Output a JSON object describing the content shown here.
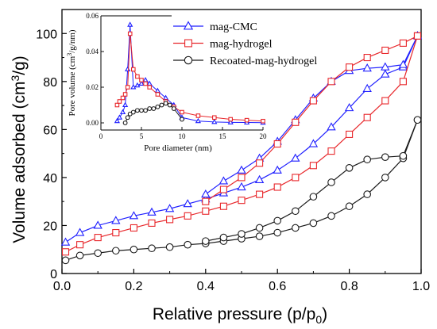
{
  "chart_data": [
    {
      "type": "line",
      "xlabel": "Relative pressure (p/p0)",
      "xlabel_parts": [
        "Relative pressure (p/p",
        "0",
        ")"
      ],
      "ylabel": "Volume adsorbed (cm3/g)",
      "ylabel_parts": [
        "Volume adsorbed (cm",
        "3",
        "/g)"
      ],
      "xlim": [
        0.0,
        1.0
      ],
      "ylim": [
        0,
        110
      ],
      "xticks": [
        0.0,
        0.2,
        0.4,
        0.6,
        0.8,
        1.0
      ],
      "xtick_labels": [
        "0.0",
        "0.2",
        "0.4",
        "0.6",
        "0.8",
        "1.0"
      ],
      "yticks": [
        0,
        20,
        40,
        60,
        80,
        100
      ],
      "ytick_labels": [
        "0",
        "20",
        "40",
        "60",
        "80",
        "100"
      ],
      "grid": false,
      "legend_position": "top-right",
      "series": [
        {
          "name": "mag-CMC",
          "color": "#1f1fff",
          "marker": "triangle",
          "adsorption": {
            "x": [
              0.01,
              0.05,
              0.1,
              0.15,
              0.2,
              0.25,
              0.3,
              0.35,
              0.4,
              0.45,
              0.5,
              0.55,
              0.6,
              0.65,
              0.7,
              0.75,
              0.8,
              0.85,
              0.9,
              0.95,
              0.99
            ],
            "y": [
              13,
              17,
              20,
              22,
              24,
              25.5,
              27,
              29,
              31,
              33.5,
              36,
              39,
              43,
              48,
              54,
              61,
              69,
              77,
              83,
              86,
              99
            ]
          },
          "desorption": {
            "x": [
              0.99,
              0.95,
              0.9,
              0.85,
              0.8,
              0.75,
              0.7,
              0.65,
              0.6,
              0.55,
              0.5,
              0.45,
              0.4
            ],
            "y": [
              99,
              87,
              86,
              85.5,
              84.5,
              80,
              73,
              64,
              55,
              48,
              43,
              38.5,
              33
            ]
          }
        },
        {
          "name": "mag-hydrogel",
          "color": "#e8272b",
          "marker": "square",
          "adsorption": {
            "x": [
              0.01,
              0.05,
              0.1,
              0.15,
              0.2,
              0.25,
              0.3,
              0.35,
              0.4,
              0.45,
              0.5,
              0.55,
              0.6,
              0.65,
              0.7,
              0.75,
              0.8,
              0.85,
              0.9,
              0.95,
              0.99
            ],
            "y": [
              9,
              12,
              15,
              17,
              19,
              21,
              22.5,
              24,
              26,
              28,
              30.5,
              33,
              36,
              40,
              45,
              51,
              58,
              65,
              72,
              80,
              99
            ]
          },
          "desorption": {
            "x": [
              0.99,
              0.95,
              0.9,
              0.85,
              0.8,
              0.75,
              0.7,
              0.65,
              0.6,
              0.55,
              0.5,
              0.45,
              0.4
            ],
            "y": [
              99,
              96,
              93,
              90,
              86,
              80,
              72,
              63,
              54,
              46,
              40,
              35,
              30
            ]
          }
        },
        {
          "name": "Recoated-mag-hydrogel",
          "color": "#1a1a1a",
          "marker": "circle",
          "adsorption": {
            "x": [
              0.01,
              0.05,
              0.1,
              0.15,
              0.2,
              0.25,
              0.3,
              0.35,
              0.4,
              0.45,
              0.5,
              0.55,
              0.6,
              0.65,
              0.7,
              0.75,
              0.8,
              0.85,
              0.9,
              0.95,
              0.99
            ],
            "y": [
              5.5,
              7.5,
              8.5,
              9.5,
              10,
              10.5,
              11,
              12,
              12.5,
              13.5,
              14.5,
              15.5,
              17,
              19,
              21,
              24,
              28,
              33,
              40,
              48,
              64
            ]
          },
          "desorption": {
            "x": [
              0.99,
              0.95,
              0.9,
              0.85,
              0.8,
              0.75,
              0.7,
              0.65,
              0.6,
              0.55,
              0.5,
              0.45,
              0.4
            ],
            "y": [
              64,
              49,
              48.5,
              47.5,
              44,
              38,
              32,
              26,
              22,
              19,
              16.5,
              15,
              13.5
            ]
          }
        }
      ]
    },
    {
      "type": "line",
      "xlabel": "Pore diameter (nm)",
      "ylabel": "Pore volume (cm3/g/nm)",
      "ylabel_parts": [
        "Pore volume (cm",
        "3",
        "/g/nm)"
      ],
      "xlim": [
        0,
        20
      ],
      "ylim": [
        -0.004,
        0.06
      ],
      "xticks": [
        0,
        5,
        10,
        15,
        20
      ],
      "xtick_labels": [
        "0",
        "5",
        "10",
        "15",
        "20"
      ],
      "yticks": [
        0.0,
        0.02,
        0.04,
        0.06
      ],
      "ytick_labels": [
        "0.00",
        "0.02",
        "0.04",
        "0.06"
      ],
      "grid": false,
      "series": [
        {
          "name": "mag-CMC",
          "color": "#1f1fff",
          "marker": "triangle",
          "x": [
            2.0,
            2.3,
            2.7,
            3.0,
            3.3,
            3.6,
            4.0,
            4.5,
            5.0,
            5.5,
            6.0,
            7.0,
            8.0,
            9.0,
            10.0,
            12.0,
            14.0,
            16.0,
            18.0,
            20.0
          ],
          "y": [
            0.001,
            0.003,
            0.006,
            0.01,
            0.03,
            0.055,
            0.02,
            0.021,
            0.022,
            0.024,
            0.022,
            0.018,
            0.014,
            0.01,
            0.003,
            0.001,
            0.0005,
            0.0003,
            0.0002,
            0.0001
          ]
        },
        {
          "name": "mag-hydrogel",
          "color": "#e8272b",
          "marker": "square",
          "x": [
            2.0,
            2.3,
            2.7,
            3.0,
            3.3,
            3.6,
            4.0,
            4.5,
            5.0,
            5.5,
            6.0,
            7.0,
            8.0,
            9.0,
            10.0,
            12.0,
            14.0,
            16.0,
            18.0,
            20.0
          ],
          "y": [
            0.01,
            0.012,
            0.014,
            0.016,
            0.02,
            0.05,
            0.03,
            0.026,
            0.024,
            0.022,
            0.02,
            0.016,
            0.012,
            0.009,
            0.006,
            0.004,
            0.003,
            0.002,
            0.0015,
            0.001
          ]
        },
        {
          "name": "Recoated-mag-hydrogel",
          "color": "#1a1a1a",
          "marker": "circle",
          "x": [
            3.0,
            3.3,
            3.6,
            4.0,
            4.5,
            5.0,
            5.5,
            6.0,
            6.5,
            7.0,
            7.5,
            8.0,
            8.5,
            9.0,
            10.0
          ],
          "y": [
            0.0,
            0.003,
            0.005,
            0.006,
            0.007,
            0.007,
            0.007,
            0.008,
            0.008,
            0.009,
            0.01,
            0.011,
            0.01,
            0.008,
            0.002
          ]
        }
      ]
    }
  ]
}
